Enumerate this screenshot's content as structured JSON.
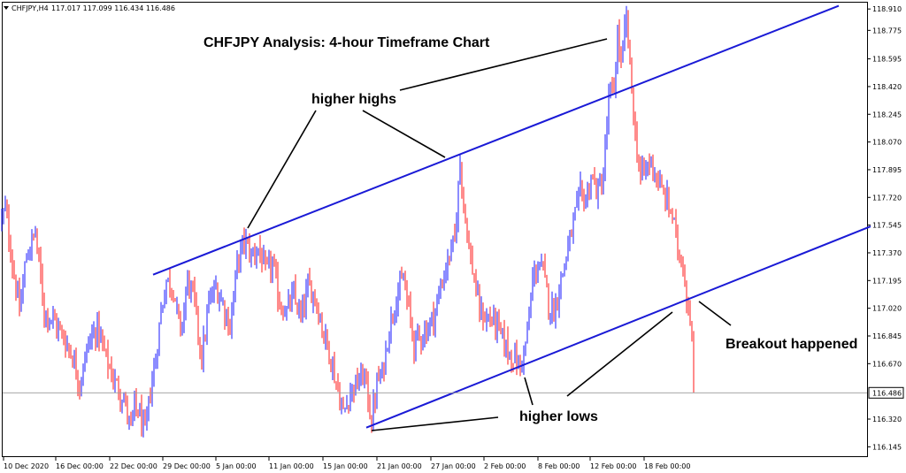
{
  "header": {
    "arrow_icon": "triangle-down-icon",
    "symbol": "CHFJPY,H4",
    "ohlc": "117.017 117.099 116.434 116.486"
  },
  "chart_data": {
    "type": "candlestick",
    "title": "CHFJPY Analysis: 4-hour Timeframe Chart",
    "colors": {
      "bull": "#1a1aff",
      "bear": "#ff1a1a",
      "trendline": "#1a1ad6",
      "annotation": "#000000"
    },
    "ylim": [
      116.08,
      118.95
    ],
    "y_ticks": [
      "118.910",
      "118.775",
      "118.595",
      "118.420",
      "118.245",
      "118.070",
      "117.895",
      "117.720",
      "117.545",
      "117.370",
      "117.195",
      "117.020",
      "116.845",
      "116.670",
      "116.320",
      "116.145"
    ],
    "current_price": "116.486",
    "x_ticks": [
      "10 Dec 2020",
      "16 Dec 00:00",
      "22 Dec 00:00",
      "29 Dec 00:00",
      "5 Jan 00:00",
      "11 Jan 00:00",
      "15 Jan 00:00",
      "21 Jan 00:00",
      "27 Jan 00:00",
      "2 Feb 00:00",
      "8 Feb 00:00",
      "12 Feb 00:00",
      "18 Feb 00:00"
    ],
    "price_path": [
      [
        0,
        117.55
      ],
      [
        6,
        117.65
      ],
      [
        14,
        117.3
      ],
      [
        22,
        117.0
      ],
      [
        30,
        117.35
      ],
      [
        40,
        117.5
      ],
      [
        50,
        117.0
      ],
      [
        60,
        116.95
      ],
      [
        70,
        116.85
      ],
      [
        80,
        116.75
      ],
      [
        90,
        116.55
      ],
      [
        100,
        116.8
      ],
      [
        110,
        116.9
      ],
      [
        120,
        116.7
      ],
      [
        130,
        116.55
      ],
      [
        140,
        116.45
      ],
      [
        148,
        116.25
      ],
      [
        152,
        116.4
      ],
      [
        158,
        116.35
      ],
      [
        164,
        116.22
      ],
      [
        170,
        116.5
      ],
      [
        176,
        116.7
      ],
      [
        182,
        117.0
      ],
      [
        188,
        117.2
      ],
      [
        196,
        117.15
      ],
      [
        204,
        116.85
      ],
      [
        212,
        117.2
      ],
      [
        220,
        117.05
      ],
      [
        228,
        116.7
      ],
      [
        236,
        117.05
      ],
      [
        244,
        117.15
      ],
      [
        252,
        117.05
      ],
      [
        260,
        116.9
      ],
      [
        268,
        117.3
      ],
      [
        276,
        117.45
      ],
      [
        284,
        117.35
      ],
      [
        292,
        117.4
      ],
      [
        300,
        117.25
      ],
      [
        308,
        117.3
      ],
      [
        316,
        117.05
      ],
      [
        324,
        117.0
      ],
      [
        332,
        117.1
      ],
      [
        340,
        116.95
      ],
      [
        348,
        117.15
      ],
      [
        356,
        117.1
      ],
      [
        364,
        116.9
      ],
      [
        372,
        116.75
      ],
      [
        380,
        116.55
      ],
      [
        388,
        116.35
      ],
      [
        396,
        116.5
      ],
      [
        404,
        116.55
      ],
      [
        412,
        116.6
      ],
      [
        420,
        116.3
      ],
      [
        426,
        116.55
      ],
      [
        432,
        116.6
      ],
      [
        440,
        116.9
      ],
      [
        448,
        117.1
      ],
      [
        456,
        117.2
      ],
      [
        462,
        117.0
      ],
      [
        468,
        116.8
      ],
      [
        476,
        116.85
      ],
      [
        484,
        116.9
      ],
      [
        492,
        117.0
      ],
      [
        500,
        117.2
      ],
      [
        508,
        117.35
      ],
      [
        514,
        117.45
      ],
      [
        520,
        117.95
      ],
      [
        524,
        117.7
      ],
      [
        530,
        117.4
      ],
      [
        536,
        117.2
      ],
      [
        542,
        117.0
      ],
      [
        550,
        116.95
      ],
      [
        558,
        116.95
      ],
      [
        566,
        116.85
      ],
      [
        574,
        116.75
      ],
      [
        582,
        116.7
      ],
      [
        588,
        116.65
      ],
      [
        596,
        116.85
      ],
      [
        602,
        117.2
      ],
      [
        608,
        117.3
      ],
      [
        614,
        117.25
      ],
      [
        620,
        117.05
      ],
      [
        626,
        117.0
      ],
      [
        632,
        117.15
      ],
      [
        638,
        117.3
      ],
      [
        644,
        117.45
      ],
      [
        650,
        117.6
      ],
      [
        656,
        117.75
      ],
      [
        662,
        117.7
      ],
      [
        668,
        117.85
      ],
      [
        676,
        117.75
      ],
      [
        682,
        117.85
      ],
      [
        688,
        118.35
      ],
      [
        694,
        118.4
      ],
      [
        698,
        118.75
      ],
      [
        702,
        118.55
      ],
      [
        708,
        118.85
      ],
      [
        714,
        118.4
      ],
      [
        718,
        118.1
      ],
      [
        724,
        117.85
      ],
      [
        730,
        117.9
      ],
      [
        736,
        117.95
      ],
      [
        742,
        117.85
      ],
      [
        748,
        117.75
      ],
      [
        754,
        117.7
      ],
      [
        760,
        117.6
      ],
      [
        766,
        117.4
      ],
      [
        772,
        117.3
      ],
      [
        777,
        117.05
      ],
      [
        781,
        116.95
      ],
      [
        785,
        116.45
      ]
    ],
    "trendlines": [
      {
        "name": "upper",
        "x": [
          173,
          948
        ],
        "y": [
          117.232,
          118.93
        ]
      },
      {
        "name": "lower",
        "x": [
          414,
          984
        ],
        "y": [
          116.266,
          117.537
        ]
      }
    ],
    "annotations": {
      "higher_highs": "higher highs",
      "higher_lows": "higher lows",
      "breakout": "Breakout happened"
    }
  }
}
